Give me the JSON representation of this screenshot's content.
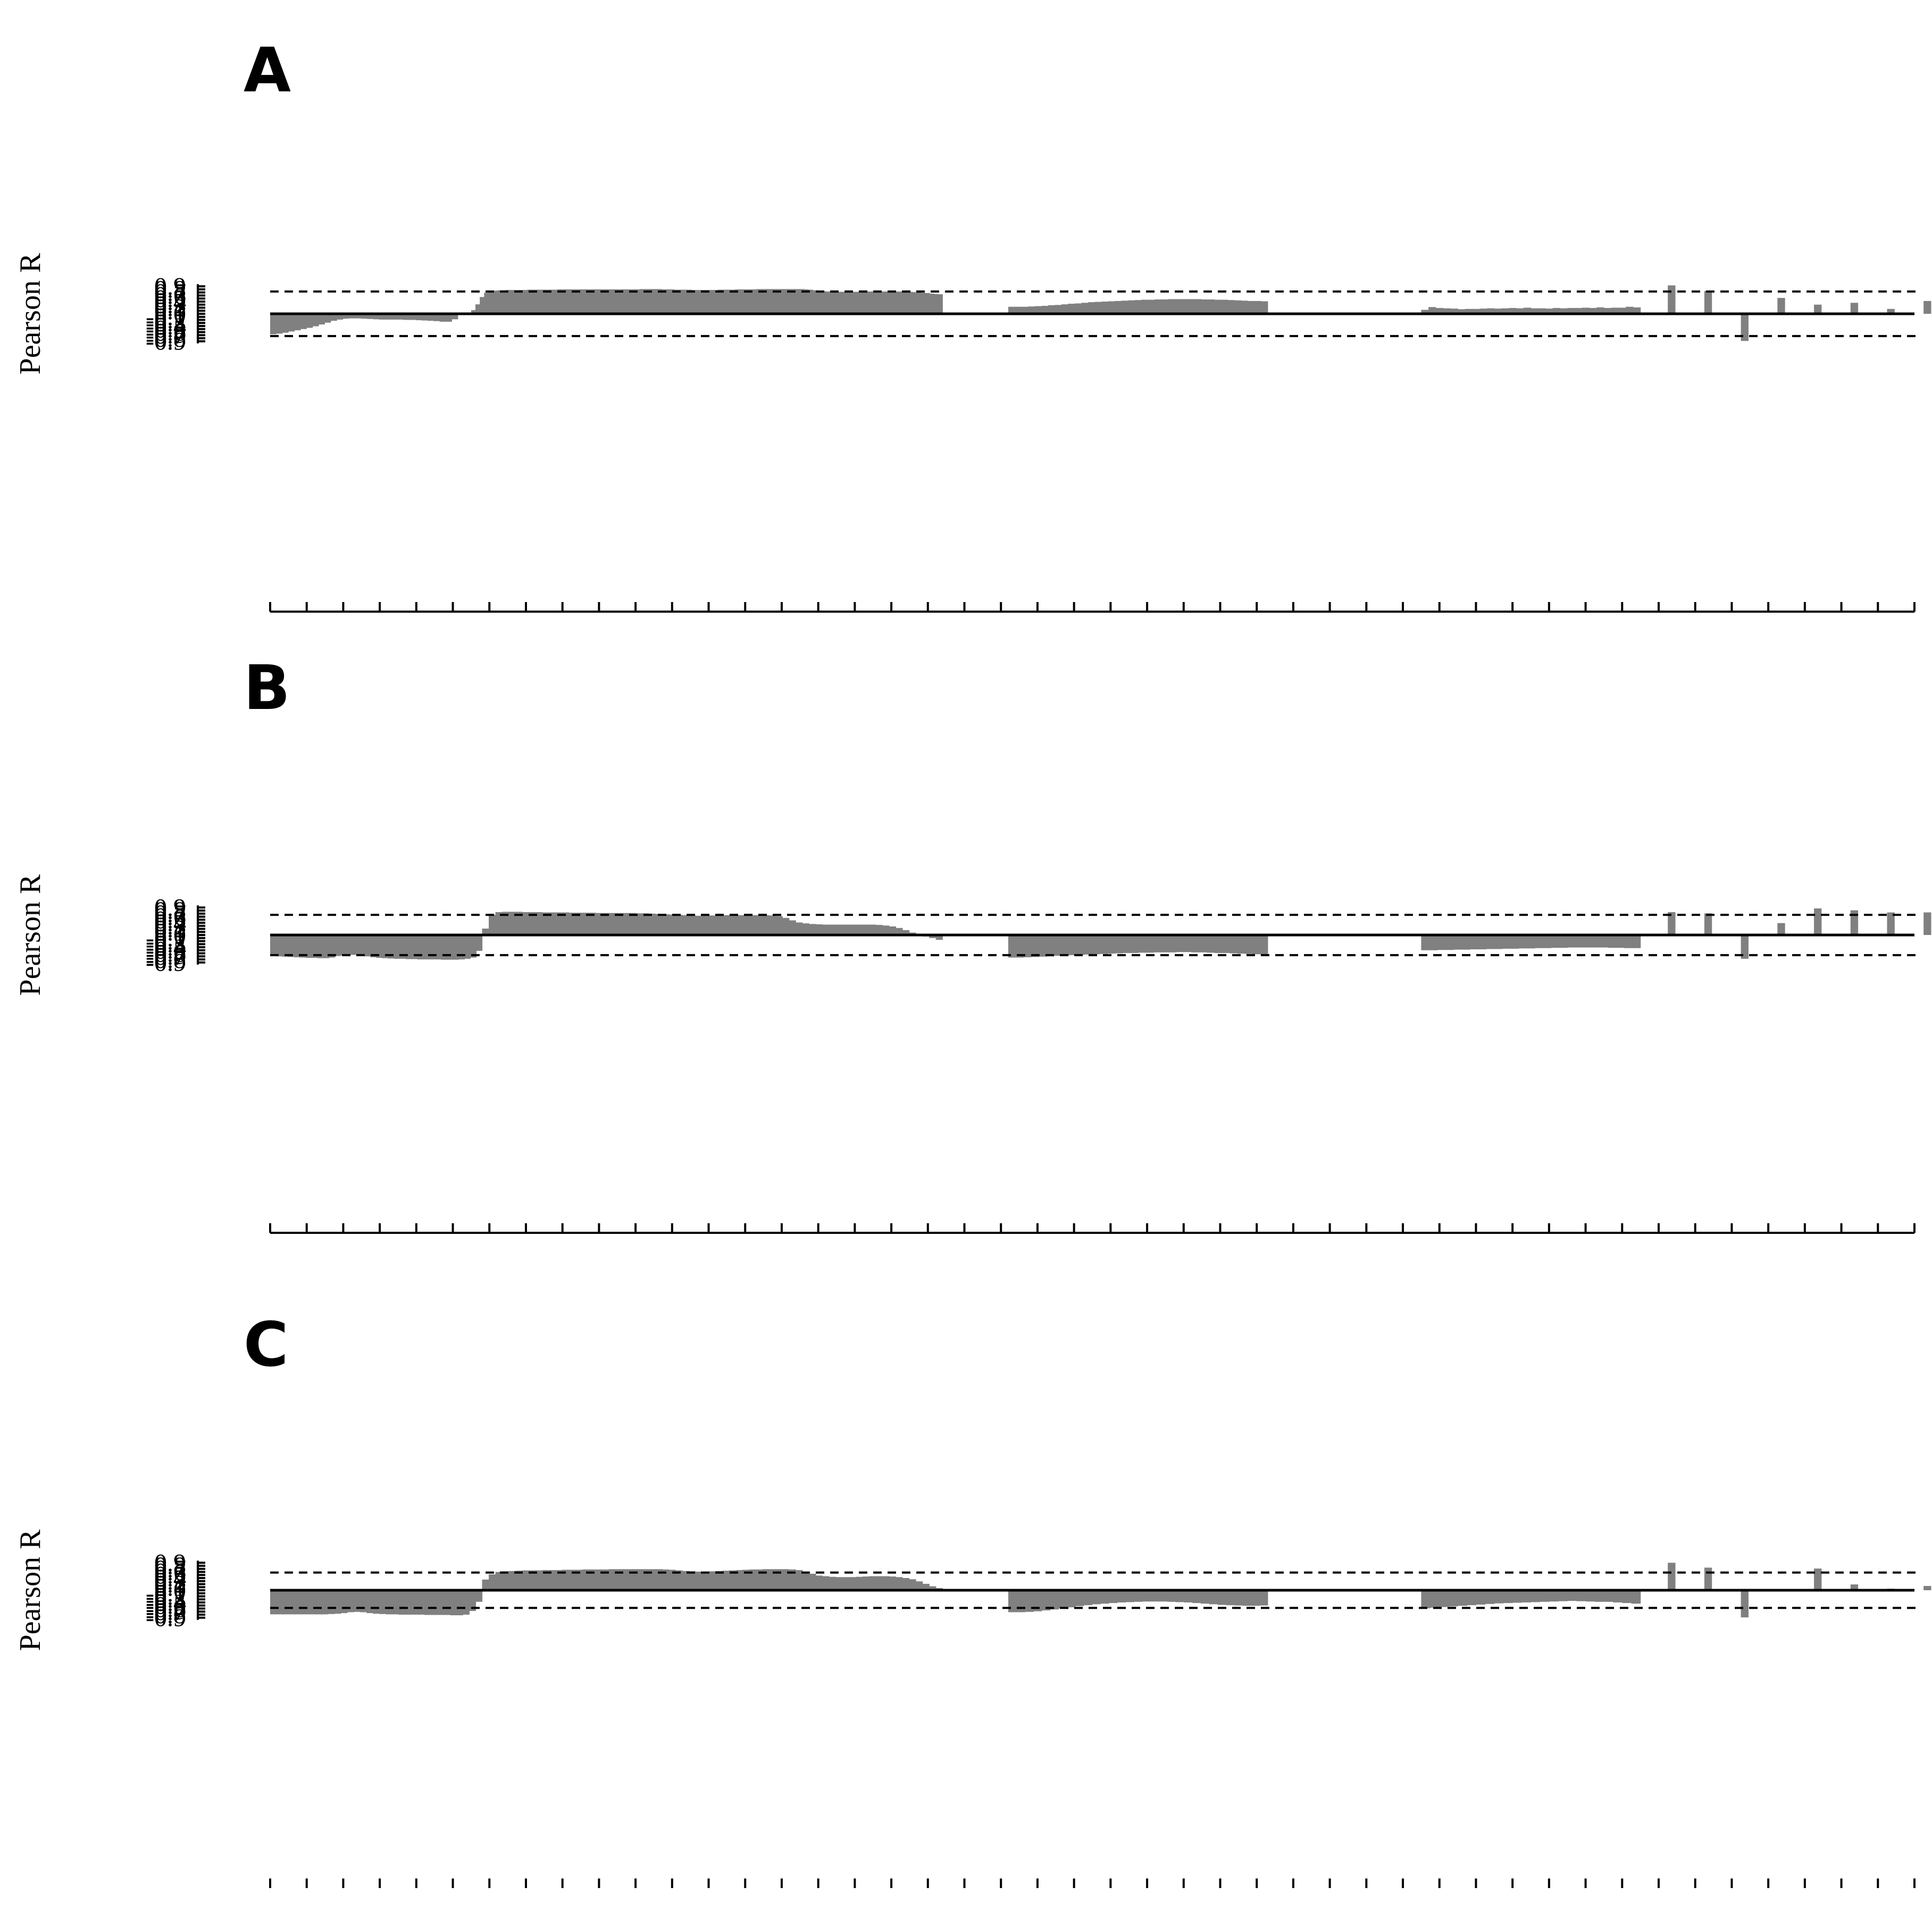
{
  "figure": {
    "bar_color": "#808080",
    "axis_color": "#000000"
  },
  "chart_data": [
    {
      "type": "bar",
      "panel_label": "A",
      "ylabel": "Pearson R",
      "ylim": [
        -0.9,
        0.9
      ],
      "yticks": [
        "0.9",
        "0.8",
        "0.7",
        "0.6",
        "0.5",
        "0.4",
        "0.3",
        "0.2",
        "0.1",
        "0",
        "-0.1",
        "-0.2",
        "-0.3",
        "-0.4",
        "-0.5",
        "-0.6",
        "-0.7",
        "-0.8",
        "-0.9"
      ],
      "threshold": 0.73,
      "x_tick_count": 46,
      "segments": [
        {
          "x_start": 0,
          "x_end": 5.3,
          "values": [
            -0.67,
            -0.65,
            -0.62,
            -0.58,
            -0.54,
            -0.5,
            -0.46,
            -0.41,
            -0.35,
            -0.29,
            -0.23,
            -0.19,
            -0.16,
            -0.15,
            -0.15,
            -0.16,
            -0.17,
            -0.18,
            -0.19,
            -0.19,
            -0.19,
            -0.19,
            -0.2,
            -0.2,
            -0.21,
            -0.22,
            -0.23,
            -0.24,
            -0.26,
            -0.26,
            -0.18,
            -0.02
          ]
        },
        {
          "x_start": 5.5,
          "x_end": 18.4,
          "values": [
            0.12,
            0.31,
            0.55,
            0.69,
            0.74,
            0.76,
            0.77,
            0.77,
            0.78,
            0.78,
            0.78,
            0.78,
            0.78,
            0.79,
            0.79,
            0.79,
            0.79,
            0.79,
            0.79,
            0.79,
            0.8,
            0.8,
            0.8,
            0.8,
            0.8,
            0.8,
            0.8,
            0.8,
            0.8,
            0.8,
            0.8,
            0.8,
            0.8,
            0.8,
            0.8,
            0.8,
            0.8,
            0.8,
            0.8,
            0.81,
            0.81,
            0.81,
            0.81,
            0.81,
            0.8,
            0.8,
            0.8,
            0.79,
            0.79,
            0.79,
            0.79,
            0.78,
            0.78,
            0.78,
            0.78,
            0.78,
            0.78,
            0.79,
            0.79,
            0.79,
            0.79,
            0.8,
            0.8,
            0.8,
            0.8,
            0.8,
            0.81,
            0.81,
            0.81,
            0.81,
            0.81,
            0.81,
            0.81,
            0.81,
            0.81,
            0.81,
            0.81,
            0.8,
            0.79,
            0.77,
            0.75,
            0.74,
            0.73,
            0.72,
            0.72,
            0.72,
            0.72,
            0.72,
            0.72,
            0.72,
            0.73,
            0.73,
            0.73,
            0.73,
            0.73,
            0.73,
            0.73,
            0.73,
            0.73,
            0.73,
            0.73,
            0.72,
            0.71,
            0.7,
            0.69,
            0.68,
            0.66,
            0.65,
            0.64
          ]
        },
        {
          "x_start": 20.2,
          "x_end": 27.3,
          "values": [
            0.23,
            0.23,
            0.23,
            0.24,
            0.25,
            0.26,
            0.28,
            0.29,
            0.31,
            0.33,
            0.34,
            0.36,
            0.38,
            0.39,
            0.4,
            0.41,
            0.42,
            0.43,
            0.44,
            0.45,
            0.46,
            0.46,
            0.47,
            0.47,
            0.48,
            0.48,
            0.48,
            0.48,
            0.48,
            0.47,
            0.47,
            0.46,
            0.46,
            0.45,
            0.44,
            0.43,
            0.42,
            0.42,
            0.41
          ]
        },
        {
          "x_start": 31.5,
          "x_end": 37.5,
          "values": [
            0.13,
            0.22,
            0.19,
            0.18,
            0.17,
            0.15,
            0.16,
            0.16,
            0.17,
            0.18,
            0.17,
            0.18,
            0.19,
            0.18,
            0.2,
            0.18,
            0.18,
            0.17,
            0.19,
            0.18,
            0.19,
            0.19,
            0.2,
            0.19,
            0.21,
            0.19,
            0.2,
            0.2,
            0.23,
            0.21
          ]
        },
        {
          "x_start": 38.25,
          "x_end": 38.45,
          "values": [
            0.93
          ]
        },
        {
          "x_start": 39.25,
          "x_end": 39.45,
          "values": [
            0.75
          ]
        },
        {
          "x_start": 40.25,
          "x_end": 40.45,
          "values": [
            -0.89
          ]
        },
        {
          "x_start": 41.25,
          "x_end": 41.45,
          "values": [
            0.52
          ]
        },
        {
          "x_start": 42.25,
          "x_end": 42.45,
          "values": [
            0.3
          ]
        },
        {
          "x_start": 43.25,
          "x_end": 43.45,
          "values": [
            0.36
          ]
        },
        {
          "x_start": 44.25,
          "x_end": 44.45,
          "values": [
            0.16
          ]
        },
        {
          "x_start": 45.25,
          "x_end": 45.45,
          "values": [
            0.42
          ]
        }
      ]
    },
    {
      "type": "bar",
      "panel_label": "B",
      "ylabel": "Pearson R",
      "ylim": [
        -0.9,
        0.9
      ],
      "yticks": [
        "0.9",
        "0.8",
        "0.7",
        "0.6",
        "0.5",
        "0.4",
        "0.3",
        "0.2",
        "0.1",
        "0",
        "-0.1",
        "-0.2",
        "-0.3",
        "-0.4",
        "-0.5",
        "-0.6",
        "-0.7",
        "-0.8",
        "-0.9"
      ],
      "threshold": 0.66,
      "x_tick_count": 46,
      "segments": [
        {
          "x_start": 0,
          "x_end": 5.8,
          "values": [
            -0.68,
            -0.7,
            -0.71,
            -0.72,
            -0.73,
            -0.74,
            -0.75,
            -0.75,
            -0.76,
            -0.76,
            -0.74,
            -0.69,
            -0.66,
            -0.65,
            -0.65,
            -0.67,
            -0.7,
            -0.73,
            -0.75,
            -0.76,
            -0.77,
            -0.78,
            -0.78,
            -0.79,
            -0.79,
            -0.8,
            -0.8,
            -0.8,
            -0.8,
            -0.81,
            -0.81,
            -0.81,
            -0.8,
            -0.78,
            -0.74,
            -0.52
          ]
        },
        {
          "x_start": 5.8,
          "x_end": 18.4,
          "values": [
            0.21,
            0.66,
            0.75,
            0.76,
            0.76,
            0.76,
            0.75,
            0.75,
            0.75,
            0.74,
            0.74,
            0.74,
            0.74,
            0.73,
            0.73,
            0.73,
            0.73,
            0.72,
            0.72,
            0.72,
            0.72,
            0.72,
            0.72,
            0.71,
            0.71,
            0.7,
            0.69,
            0.68,
            0.67,
            0.66,
            0.65,
            0.64,
            0.63,
            0.64,
            0.64,
            0.65,
            0.65,
            0.65,
            0.65,
            0.65,
            0.65,
            0.65,
            0.65,
            0.64,
            0.62,
            0.56,
            0.48,
            0.41,
            0.38,
            0.36,
            0.35,
            0.34,
            0.34,
            0.34,
            0.34,
            0.34,
            0.34,
            0.34,
            0.34,
            0.33,
            0.31,
            0.28,
            0.23,
            0.16,
            0.08,
            0.0,
            -0.05,
            -0.1,
            -0.16
          ]
        },
        {
          "x_start": 20.2,
          "x_end": 27.3,
          "values": [
            -0.74,
            -0.74,
            -0.73,
            -0.72,
            -0.71,
            -0.7,
            -0.68,
            -0.67,
            -0.66,
            -0.65,
            -0.64,
            -0.63,
            -0.62,
            -0.61,
            -0.6,
            -0.59,
            -0.59,
            -0.58,
            -0.58,
            -0.57,
            -0.57,
            -0.57,
            -0.56,
            -0.56,
            -0.57,
            -0.57,
            -0.58,
            -0.59,
            -0.59,
            -0.6,
            -0.61,
            -0.62,
            -0.63,
            -0.64
          ]
        },
        {
          "x_start": 31.5,
          "x_end": 37.5,
          "values": [
            -0.5,
            -0.5,
            -0.49,
            -0.49,
            -0.48,
            -0.48,
            -0.47,
            -0.47,
            -0.46,
            -0.46,
            -0.45,
            -0.45,
            -0.44,
            -0.44,
            -0.43,
            -0.43,
            -0.42,
            -0.42,
            -0.41,
            -0.41,
            -0.41,
            -0.41,
            -0.41,
            -0.42,
            -0.42,
            -0.43,
            -0.43
          ]
        },
        {
          "x_start": 38.25,
          "x_end": 38.45,
          "values": [
            0.75
          ]
        },
        {
          "x_start": 39.25,
          "x_end": 39.45,
          "values": [
            0.71
          ]
        },
        {
          "x_start": 40.25,
          "x_end": 40.45,
          "values": [
            -0.78
          ]
        },
        {
          "x_start": 41.25,
          "x_end": 41.45,
          "values": [
            0.39
          ]
        },
        {
          "x_start": 42.25,
          "x_end": 42.45,
          "values": [
            0.87
          ]
        },
        {
          "x_start": 43.25,
          "x_end": 43.45,
          "values": [
            0.81
          ]
        },
        {
          "x_start": 44.25,
          "x_end": 44.45,
          "values": [
            0.74
          ]
        },
        {
          "x_start": 45.25,
          "x_end": 45.45,
          "values": [
            0.74
          ]
        }
      ]
    },
    {
      "type": "bar",
      "panel_label": "C",
      "ylabel": "Pearson R",
      "ylim": [
        -0.9,
        0.9
      ],
      "yticks": [
        "0.9",
        "0.8",
        "0.7",
        "0.6",
        "0.5",
        "0.4",
        "0.3",
        "0.2",
        "0.1",
        "0",
        "-0.1",
        "-0.2",
        "-0.3",
        "-0.4",
        "-0.5",
        "-0.6",
        "-0.7",
        "-0.8",
        "-0.9"
      ],
      "threshold": 0.58,
      "x_tick_count": 46,
      "segments": [
        {
          "x_start": 0,
          "x_end": 5.8,
          "values": [
            -0.79,
            -0.79,
            -0.79,
            -0.79,
            -0.79,
            -0.79,
            -0.79,
            -0.79,
            -0.79,
            -0.78,
            -0.77,
            -0.75,
            -0.72,
            -0.71,
            -0.72,
            -0.75,
            -0.77,
            -0.78,
            -0.79,
            -0.79,
            -0.8,
            -0.8,
            -0.8,
            -0.8,
            -0.81,
            -0.81,
            -0.81,
            -0.81,
            -0.82,
            -0.82,
            -0.8,
            -0.68,
            -0.38
          ]
        },
        {
          "x_start": 5.8,
          "x_end": 18.4,
          "values": [
            0.35,
            0.52,
            0.6,
            0.62,
            0.63,
            0.64,
            0.65,
            0.65,
            0.65,
            0.66,
            0.66,
            0.66,
            0.67,
            0.67,
            0.67,
            0.68,
            0.68,
            0.68,
            0.68,
            0.69,
            0.69,
            0.69,
            0.69,
            0.69,
            0.69,
            0.69,
            0.69,
            0.68,
            0.67,
            0.65,
            0.63,
            0.62,
            0.61,
            0.61,
            0.62,
            0.63,
            0.64,
            0.65,
            0.66,
            0.67,
            0.68,
            0.68,
            0.69,
            0.69,
            0.69,
            0.69,
            0.68,
            0.66,
            0.61,
            0.54,
            0.48,
            0.46,
            0.44,
            0.43,
            0.43,
            0.43,
            0.44,
            0.45,
            0.46,
            0.46,
            0.46,
            0.45,
            0.43,
            0.4,
            0.36,
            0.29,
            0.21,
            0.13,
            0.07
          ]
        },
        {
          "x_start": 20.2,
          "x_end": 27.3,
          "values": [
            -0.72,
            -0.72,
            -0.71,
            -0.69,
            -0.66,
            -0.63,
            -0.59,
            -0.56,
            -0.52,
            -0.49,
            -0.46,
            -0.44,
            -0.42,
            -0.4,
            -0.39,
            -0.38,
            -0.37,
            -0.37,
            -0.37,
            -0.38,
            -0.39,
            -0.4,
            -0.42,
            -0.44,
            -0.46,
            -0.48,
            -0.49,
            -0.5,
            -0.51,
            -0.51,
            -0.5
          ]
        },
        {
          "x_start": 31.5,
          "x_end": 37.5,
          "values": [
            -0.59,
            -0.57,
            -0.55,
            -0.53,
            -0.51,
            -0.49,
            -0.47,
            -0.45,
            -0.43,
            -0.42,
            -0.41,
            -0.4,
            -0.39,
            -0.38,
            -0.37,
            -0.36,
            -0.35,
            -0.36,
            -0.37,
            -0.38,
            -0.38,
            -0.4,
            -0.42,
            -0.44
          ]
        },
        {
          "x_start": 38.25,
          "x_end": 38.45,
          "values": [
            0.9
          ]
        },
        {
          "x_start": 39.25,
          "x_end": 39.45,
          "values": [
            0.74
          ]
        },
        {
          "x_start": 40.25,
          "x_end": 40.45,
          "values": [
            -0.89
          ]
        },
        {
          "x_start": 41.25,
          "x_end": 41.45,
          "values": [
            0.03
          ]
        },
        {
          "x_start": 42.25,
          "x_end": 42.45,
          "values": [
            0.71
          ]
        },
        {
          "x_start": 43.25,
          "x_end": 43.45,
          "values": [
            0.19
          ]
        },
        {
          "x_start": 44.25,
          "x_end": 44.45,
          "values": [
            0.05
          ]
        },
        {
          "x_start": 45.25,
          "x_end": 45.45,
          "values": [
            0.14
          ]
        }
      ]
    }
  ]
}
